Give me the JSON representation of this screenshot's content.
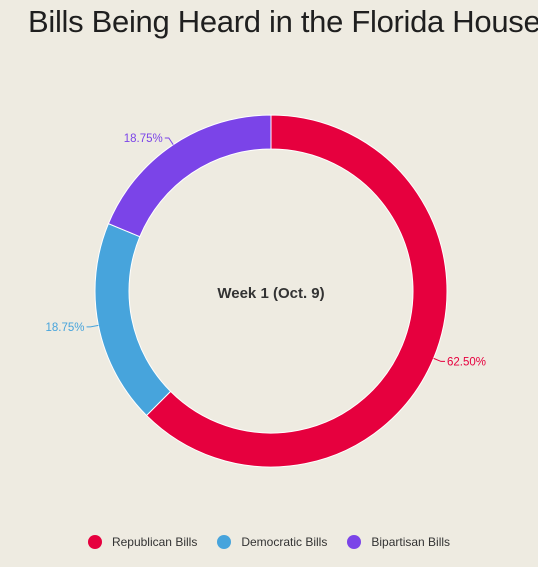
{
  "title": "Bills Being Heard in the Florida House",
  "chart_data": {
    "type": "pie",
    "center_label": "Week 1 (Oct. 9)",
    "slices": [
      {
        "name": "Republican Bills",
        "value": 62.5,
        "label": "62.50%",
        "color": "#e6003e"
      },
      {
        "name": "Democratic Bills",
        "value": 18.75,
        "label": "18.75%",
        "color": "#47a4dc"
      },
      {
        "name": "Bipartisan Bills",
        "value": 18.75,
        "label": "18.75%",
        "color": "#7b44e8"
      }
    ],
    "legend_position": "bottom"
  }
}
